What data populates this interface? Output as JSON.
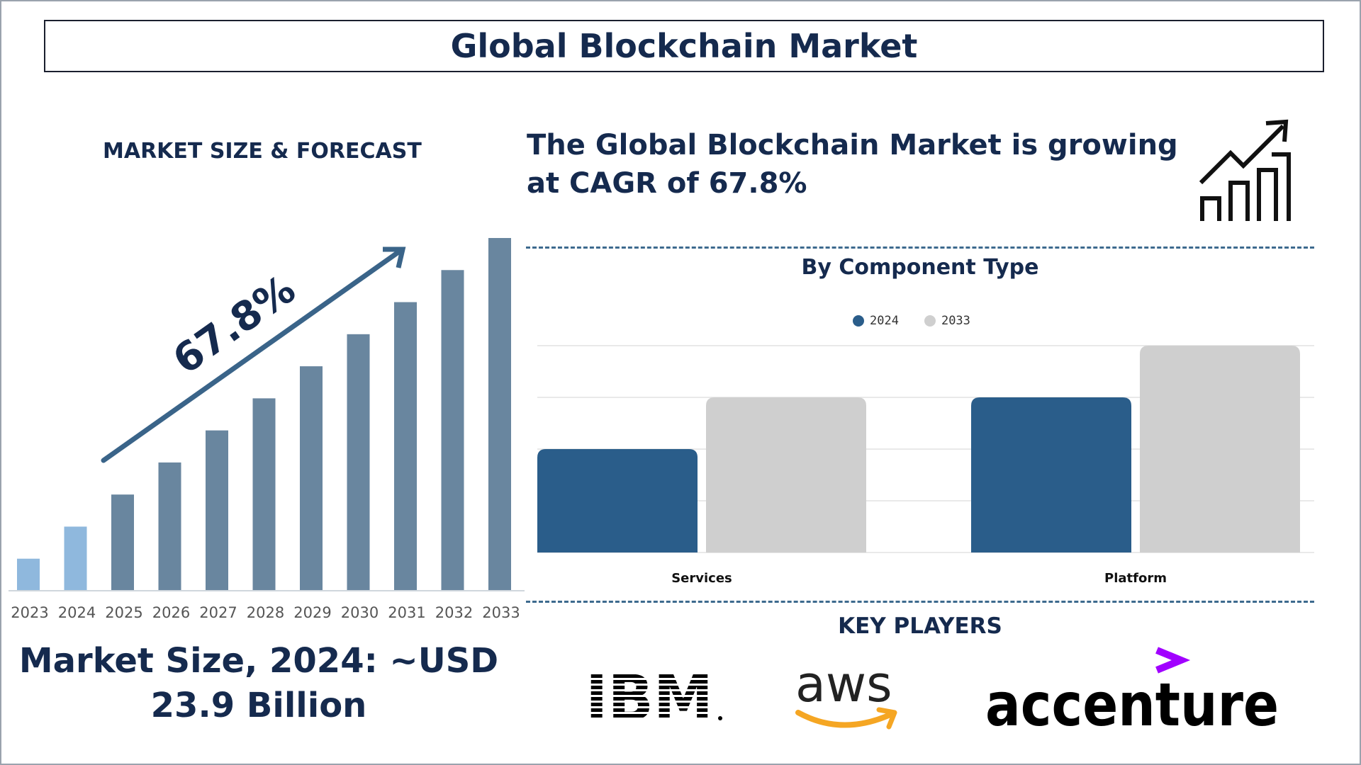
{
  "title": "Global Blockchain Market",
  "left_heading": "MARKET SIZE & FORECAST",
  "cagr_text": "The Global Blockchain Market is growing at CAGR of 67.8%",
  "cagr_label": "67.8%",
  "market_size_text": "Market Size, 2024: ~USD 23.9 Billion",
  "component_title": "By Component Type",
  "key_players_title": "KEY PLAYERS",
  "key_players": [
    "IBM",
    "aws",
    "accenture"
  ],
  "colors": {
    "navy": "#152a4e",
    "bar_highlight": "#8fb8dd",
    "bar_main": "#69869f",
    "series_2024": "#2a5d8a",
    "series_2033": "#cfcfcf",
    "aws_orange": "#f5a623",
    "accenture_purple": "#a100ff"
  },
  "chart_data": [
    {
      "type": "bar",
      "title": "",
      "categories": [
        "2023",
        "2024",
        "2025",
        "2026",
        "2027",
        "2028",
        "2029",
        "2030",
        "2031",
        "2032",
        "2033"
      ],
      "values": [
        1,
        2,
        3,
        4,
        5,
        6,
        7,
        8,
        9,
        10,
        11
      ],
      "highlighted": [
        "2023",
        "2024"
      ],
      "ylim": [
        0,
        11
      ],
      "annotation": "67.8%",
      "grid": false
    },
    {
      "type": "bar",
      "title": "By Component Type",
      "categories": [
        "Services",
        "Platform"
      ],
      "series": [
        {
          "name": "2024",
          "values": [
            2,
            3
          ]
        },
        {
          "name": "2033",
          "values": [
            3,
            4
          ]
        }
      ],
      "ylim": [
        0,
        4
      ],
      "grid": true,
      "legend": "top-center"
    }
  ]
}
